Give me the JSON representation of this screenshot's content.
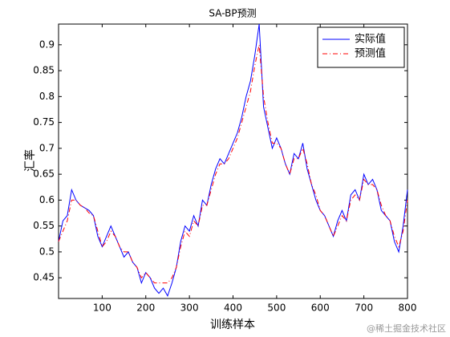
{
  "chart_data": {
    "type": "line",
    "title": "SA-BP预测",
    "xlabel": "训练样本",
    "ylabel": "汇率",
    "watermark": "@稀土掘金技术社区",
    "x": [
      0,
      10,
      20,
      30,
      40,
      50,
      60,
      70,
      80,
      90,
      100,
      110,
      120,
      130,
      140,
      150,
      160,
      170,
      180,
      190,
      200,
      210,
      220,
      230,
      240,
      250,
      260,
      270,
      280,
      290,
      300,
      310,
      320,
      330,
      340,
      350,
      360,
      370,
      380,
      390,
      400,
      410,
      420,
      430,
      440,
      450,
      460,
      470,
      480,
      490,
      500,
      510,
      520,
      530,
      540,
      550,
      560,
      570,
      580,
      590,
      600,
      610,
      620,
      630,
      640,
      650,
      660,
      670,
      680,
      690,
      700,
      710,
      720,
      730,
      740,
      750,
      760,
      770,
      780,
      790,
      800
    ],
    "series": [
      {
        "name": "实际值",
        "color": "#0000ff",
        "dash": "solid",
        "values": [
          0.52,
          0.56,
          0.57,
          0.62,
          0.6,
          0.59,
          0.585,
          0.58,
          0.57,
          0.53,
          0.51,
          0.53,
          0.55,
          0.53,
          0.51,
          0.49,
          0.5,
          0.48,
          0.47,
          0.44,
          0.46,
          0.45,
          0.43,
          0.42,
          0.43,
          0.415,
          0.44,
          0.47,
          0.52,
          0.55,
          0.54,
          0.57,
          0.55,
          0.6,
          0.59,
          0.63,
          0.66,
          0.68,
          0.67,
          0.69,
          0.71,
          0.73,
          0.76,
          0.8,
          0.83,
          0.88,
          0.94,
          0.78,
          0.74,
          0.7,
          0.72,
          0.7,
          0.67,
          0.65,
          0.69,
          0.68,
          0.71,
          0.66,
          0.63,
          0.6,
          0.58,
          0.57,
          0.55,
          0.53,
          0.56,
          0.58,
          0.56,
          0.61,
          0.62,
          0.6,
          0.65,
          0.63,
          0.64,
          0.62,
          0.58,
          0.57,
          0.56,
          0.52,
          0.5,
          0.55,
          0.62
        ]
      },
      {
        "name": "预测值",
        "color": "#ff0000",
        "dash": "dashdot",
        "values": [
          0.52,
          0.54,
          0.56,
          0.6,
          0.6,
          0.59,
          0.585,
          0.575,
          0.57,
          0.54,
          0.51,
          0.52,
          0.54,
          0.53,
          0.51,
          0.5,
          0.5,
          0.48,
          0.47,
          0.45,
          0.46,
          0.45,
          0.44,
          0.44,
          0.44,
          0.44,
          0.45,
          0.47,
          0.51,
          0.54,
          0.53,
          0.56,
          0.55,
          0.59,
          0.59,
          0.62,
          0.65,
          0.67,
          0.67,
          0.68,
          0.7,
          0.72,
          0.75,
          0.78,
          0.81,
          0.86,
          0.9,
          0.8,
          0.75,
          0.71,
          0.71,
          0.7,
          0.67,
          0.65,
          0.68,
          0.68,
          0.7,
          0.67,
          0.63,
          0.61,
          0.58,
          0.57,
          0.55,
          0.53,
          0.55,
          0.57,
          0.56,
          0.6,
          0.61,
          0.6,
          0.64,
          0.63,
          0.63,
          0.62,
          0.59,
          0.57,
          0.56,
          0.53,
          0.51,
          0.54,
          0.6
        ]
      }
    ],
    "xlim": [
      0,
      800
    ],
    "xticks": [
      100,
      200,
      300,
      400,
      500,
      600,
      700,
      800
    ],
    "ylim": [
      0.41,
      0.94
    ],
    "yticks": [
      0.45,
      0.5,
      0.55,
      0.6,
      0.65,
      0.7,
      0.75,
      0.8,
      0.85,
      0.9
    ],
    "legend": "northeast"
  }
}
